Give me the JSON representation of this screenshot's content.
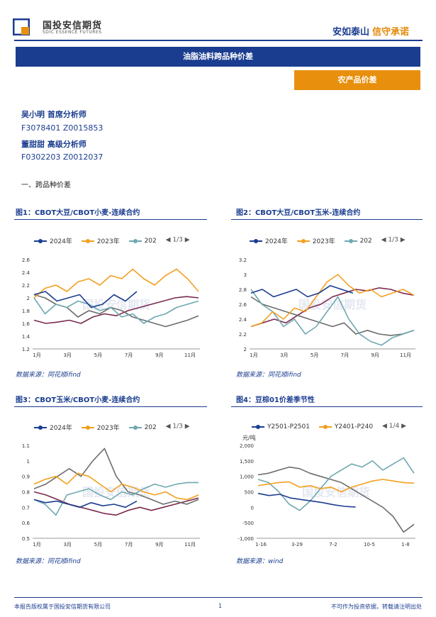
{
  "header": {
    "logo_cn": "国投安信期货",
    "logo_en": "SDIC ESSENCE FUTURES",
    "slogan_1": "安如泰山",
    "slogan_2": "信守承诺",
    "banner": "油脂油料跨品种价差",
    "tag": "农产品价差"
  },
  "analysts": [
    {
      "name": "吴小明 首席分析师",
      "license": "F3078401 Z0015853"
    },
    {
      "name": "董甜甜 高级分析师",
      "license": "F0302203 Z0012037"
    }
  ],
  "section_title": "一、跨品种价差",
  "watermark": "国投安信期货",
  "colors": {
    "navy": "#1a3d8f",
    "orange": "#f2a01f",
    "teal": "#6fa8b0",
    "gray": "#6d6d6d",
    "maroon": "#7a2a4e"
  },
  "figures": [
    {
      "title": "图1：CBOT大豆/CBOT小麦-连续合约",
      "legend": [
        "2024年",
        "2023年",
        "202"
      ],
      "page": "1/3",
      "source": "数据来源：同花顺ifind",
      "chart_data": {
        "type": "line",
        "unit": "",
        "yticks": [
          "2.6",
          "2.4",
          "2.2",
          "2",
          "1.8",
          "1.6",
          "1.4",
          "1.2"
        ],
        "ylim": [
          1.2,
          2.6
        ],
        "xticks": [
          "1月",
          "3月",
          "5月",
          "7月",
          "9月",
          "11月"
        ],
        "series": [
          {
            "name": "2024年",
            "color": "#1a3d8f",
            "values": [
              2.05,
              2.1,
              1.95,
              2.0,
              2.05,
              1.85,
              1.9,
              2.05,
              1.95,
              2.1
            ]
          },
          {
            "name": "2023年",
            "color": "#f2a01f",
            "values": [
              2.0,
              2.15,
              2.2,
              2.1,
              2.25,
              2.3,
              2.2,
              2.35,
              2.3,
              2.45,
              2.3,
              2.2,
              2.35,
              2.45,
              2.3,
              2.1
            ]
          },
          {
            "name": "202",
            "color": "#6fa8b0",
            "values": [
              2.0,
              1.75,
              1.9,
              1.85,
              1.95,
              1.9,
              1.8,
              1.85,
              1.7,
              1.75,
              1.6,
              1.7,
              1.75,
              1.85,
              1.9,
              1.95
            ]
          },
          {
            "name": "",
            "color": "#6d6d6d",
            "values": [
              2.05,
              2.0,
              1.9,
              1.85,
              1.7,
              1.8,
              1.75,
              1.85,
              1.8,
              1.7,
              1.65,
              1.6,
              1.55,
              1.6,
              1.65,
              1.72
            ]
          },
          {
            "name": "",
            "color": "#7a2a4e",
            "values": [
              1.65,
              1.6,
              1.62,
              1.65,
              1.6,
              1.7,
              1.75,
              1.72,
              1.8,
              1.85,
              1.9,
              1.95,
              2.0,
              2.02,
              2.0
            ]
          }
        ]
      }
    },
    {
      "title": "图2：CBOT大豆/CBOT玉米-连续合约",
      "legend": [
        "2024年",
        "2023年",
        "202"
      ],
      "page": "1/3",
      "source": "数据来源：同花顺ifind",
      "chart_data": {
        "type": "line",
        "unit": "",
        "yticks": [
          "3.2",
          "3",
          "2.8",
          "2.6",
          "2.4",
          "2.2",
          "2"
        ],
        "ylim": [
          2.0,
          3.2
        ],
        "xticks": [
          "1月",
          "3月",
          "5月",
          "7月",
          "9月",
          "11月"
        ],
        "series": [
          {
            "name": "2024年",
            "color": "#1a3d8f",
            "values": [
              2.75,
              2.8,
              2.7,
              2.75,
              2.8,
              2.7,
              2.75,
              2.85,
              2.8,
              2.75
            ]
          },
          {
            "name": "2023年",
            "color": "#f2a01f",
            "values": [
              2.3,
              2.35,
              2.5,
              2.4,
              2.55,
              2.5,
              2.7,
              2.9,
              3.0,
              2.85,
              2.75,
              2.8,
              2.7,
              2.75,
              2.8,
              2.72
            ]
          },
          {
            "name": "202",
            "color": "#6fa8b0",
            "values": [
              2.8,
              2.6,
              2.5,
              2.3,
              2.4,
              2.2,
              2.3,
              2.5,
              2.7,
              2.4,
              2.2,
              2.1,
              2.05,
              2.15,
              2.2,
              2.25
            ]
          },
          {
            "name": "",
            "color": "#6d6d6d",
            "values": [
              2.7,
              2.6,
              2.55,
              2.5,
              2.45,
              2.4,
              2.35,
              2.3,
              2.35,
              2.2,
              2.25,
              2.2,
              2.18,
              2.2,
              2.25
            ]
          },
          {
            "name": "",
            "color": "#7a2a4e",
            "values": [
              2.3,
              2.35,
              2.4,
              2.35,
              2.45,
              2.55,
              2.6,
              2.7,
              2.75,
              2.8,
              2.78,
              2.82,
              2.8,
              2.75,
              2.72
            ]
          }
        ]
      }
    },
    {
      "title": "图3：CBOT玉米/CBOT小麦-连续合约",
      "legend": [
        "2024年",
        "2023年",
        "202"
      ],
      "page": "1/3",
      "source": "数据来源：同花顺ifind",
      "chart_data": {
        "type": "line",
        "unit": "",
        "yticks": [
          "1.1",
          "1",
          "0.9",
          "0.8",
          "0.7",
          "0.6",
          "0.5"
        ],
        "ylim": [
          0.5,
          1.1
        ],
        "xticks": [
          "1月",
          "3月",
          "5月",
          "7月",
          "9月",
          "11月"
        ],
        "series": [
          {
            "name": "2024年",
            "color": "#1a3d8f",
            "values": [
              0.75,
              0.73,
              0.74,
              0.72,
              0.7,
              0.73,
              0.71,
              0.72,
              0.7,
              0.74
            ]
          },
          {
            "name": "2023年",
            "color": "#f2a01f",
            "values": [
              0.85,
              0.88,
              0.9,
              0.85,
              0.92,
              0.9,
              0.85,
              0.8,
              0.85,
              0.83,
              0.8,
              0.78,
              0.8,
              0.76,
              0.75,
              0.78
            ]
          },
          {
            "name": "202",
            "color": "#6fa8b0",
            "values": [
              0.75,
              0.72,
              0.65,
              0.78,
              0.8,
              0.82,
              0.78,
              0.75,
              0.8,
              0.78,
              0.82,
              0.85,
              0.83,
              0.85,
              0.86,
              0.86
            ]
          },
          {
            "name": "",
            "color": "#6d6d6d",
            "values": [
              0.82,
              0.85,
              0.9,
              0.95,
              0.9,
              1.0,
              1.08,
              0.9,
              0.8,
              0.78,
              0.75,
              0.72,
              0.74,
              0.72,
              0.75
            ]
          },
          {
            "name": "",
            "color": "#7a2a4e",
            "values": [
              0.8,
              0.78,
              0.75,
              0.72,
              0.7,
              0.68,
              0.66,
              0.65,
              0.68,
              0.7,
              0.68,
              0.7,
              0.72,
              0.74,
              0.76
            ]
          }
        ]
      }
    },
    {
      "title": "图4：豆棕01价差季节性",
      "legend": [
        "Y2501-P2501",
        "Y2401-P240"
      ],
      "page": "1/4",
      "source": "数据来源：wind",
      "chart_data": {
        "type": "line",
        "unit": "元/吨",
        "yticks": [
          "2,000",
          "1,500",
          "1,000",
          "500",
          "0",
          "-500",
          "-1,000"
        ],
        "ylim": [
          -1000,
          2000
        ],
        "xticks": [
          "1-16",
          "3-29",
          "7-2",
          "10-5",
          "1-8"
        ],
        "series": [
          {
            "name": "Y2501-P2501",
            "color": "#1a3d8f",
            "values": [
              450,
              380,
              420,
              300,
              250,
              200,
              150,
              80,
              30,
              10
            ]
          },
          {
            "name": "Y2401-P240",
            "color": "#f2a01f",
            "values": [
              700,
              750,
              800,
              820,
              650,
              700,
              600,
              650,
              500,
              650,
              750,
              850,
              900,
              850,
              800,
              780
            ]
          },
          {
            "name": "",
            "color": "#6fa8b0",
            "values": [
              900,
              800,
              500,
              100,
              -100,
              200,
              600,
              1000,
              1200,
              1400,
              1300,
              1500,
              1200,
              1400,
              1600,
              1100
            ]
          },
          {
            "name": "",
            "color": "#6d6d6d",
            "values": [
              1050,
              1100,
              1200,
              1300,
              1250,
              1100,
              1000,
              900,
              800,
              600,
              400,
              200,
              0,
              -300,
              -800,
              -550
            ]
          }
        ]
      }
    }
  ],
  "footer": {
    "left": "本报告版权属于国投安信期货有限公司",
    "page": "1",
    "right": "不可作为投资依据，转载请注明出处"
  }
}
